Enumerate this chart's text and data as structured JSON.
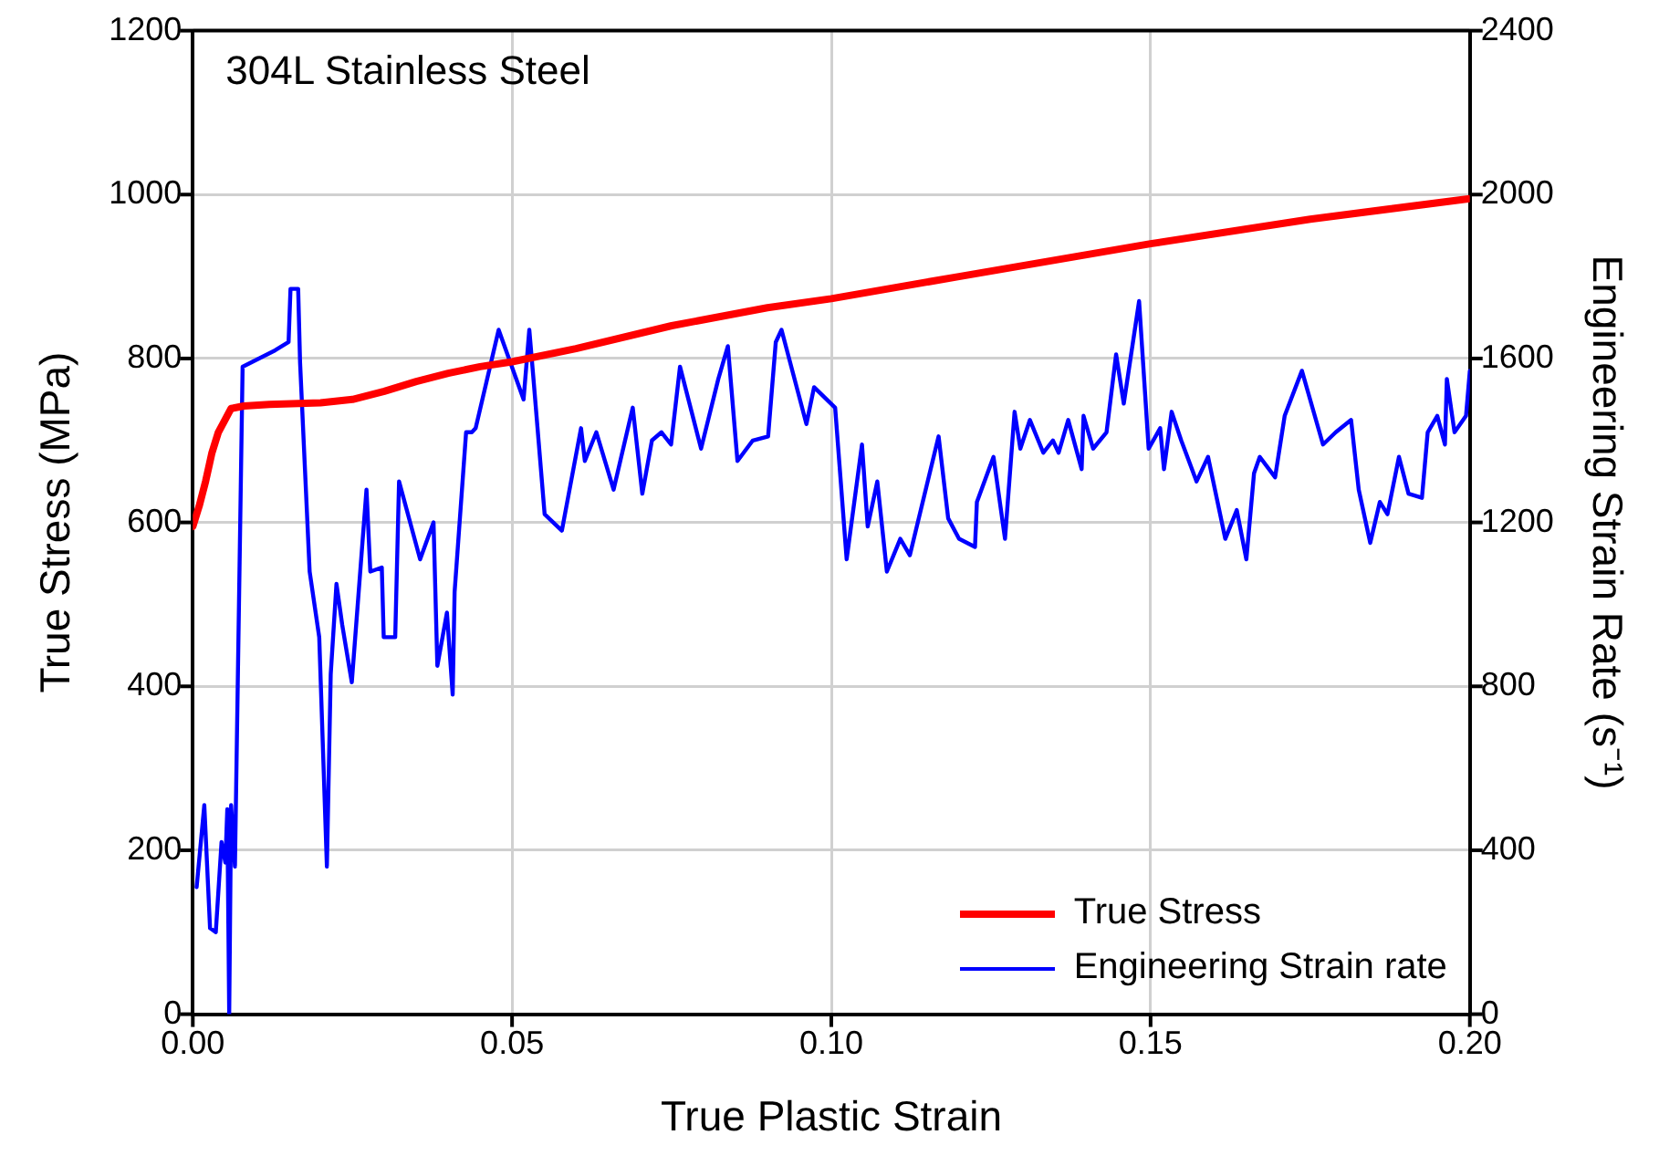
{
  "chart_data": {
    "type": "line",
    "xlabel": "True Plastic Strain",
    "ylabel": "True Stress (MPa)",
    "y2label": "Engineering Strain Rate (s⁻¹)",
    "annotations": [
      "304L Stainless Steel"
    ],
    "xlim": [
      0,
      0.2
    ],
    "xticks": [
      {
        "value": 0,
        "label": "0.00"
      },
      {
        "value": 0.05,
        "label": "0.05"
      },
      {
        "value": 0.1,
        "label": "0.10"
      },
      {
        "value": 0.15,
        "label": "0.15"
      },
      {
        "value": 0.2,
        "label": "0.20"
      }
    ],
    "ylim": [
      0,
      1200
    ],
    "yticks": [
      0,
      200,
      400,
      600,
      800,
      1000,
      1200
    ],
    "y2lim": [
      0,
      2400
    ],
    "y2ticks": [
      0,
      400,
      800,
      1200,
      1600,
      2000,
      2400
    ],
    "grid": true,
    "legend": "bottom right",
    "marker": "none",
    "line_style": "solid",
    "series": [
      {
        "name": "True Stress",
        "color": "#ff0000",
        "x": [
          0,
          0.001,
          0.002,
          0.003,
          0.004,
          0.006,
          0.008,
          0.012,
          0.02,
          0.025,
          0.03,
          0.035,
          0.04,
          0.045,
          0.05,
          0.06,
          0.075,
          0.09,
          0.1,
          0.12,
          0.15,
          0.175,
          0.2
        ],
        "values": [
          595,
          620,
          650,
          685,
          710,
          739,
          742,
          744,
          746,
          750,
          760,
          772,
          782,
          790,
          796,
          812,
          840,
          862,
          873,
          900,
          940,
          970,
          995
        ]
      },
      {
        "name": "Engineering Strain rate",
        "color": "#0000ff",
        "axis": "y2",
        "x": [
          0.0006,
          0.0018,
          0.0027,
          0.0036,
          0.0045,
          0.0051,
          0.0054,
          0.0057,
          0.006,
          0.0066,
          0.0078,
          0.0129,
          0.015,
          0.0153,
          0.0165,
          0.0168,
          0.0183,
          0.0198,
          0.021,
          0.0216,
          0.0225,
          0.0234,
          0.0249,
          0.0272,
          0.0278,
          0.0296,
          0.0299,
          0.0317,
          0.0323,
          0.0356,
          0.0377,
          0.0383,
          0.0398,
          0.0407,
          0.041,
          0.0428,
          0.0437,
          0.0443,
          0.0479,
          0.0518,
          0.0527,
          0.0533,
          0.0551,
          0.0578,
          0.0608,
          0.0614,
          0.0632,
          0.0659,
          0.0689,
          0.0704,
          0.0719,
          0.0734,
          0.0749,
          0.0763,
          0.0796,
          0.0823,
          0.0838,
          0.0853,
          0.0877,
          0.0901,
          0.0913,
          0.0922,
          0.0961,
          0.0973,
          0.1006,
          0.1024,
          0.1048,
          0.1057,
          0.1072,
          0.1087,
          0.1108,
          0.1123,
          0.1168,
          0.1183,
          0.12,
          0.1225,
          0.1228,
          0.1254,
          0.1272,
          0.1287,
          0.1296,
          0.1311,
          0.1332,
          0.1347,
          0.1356,
          0.1371,
          0.1392,
          0.1395,
          0.141,
          0.1431,
          0.1446,
          0.1458,
          0.1482,
          0.1497,
          0.1515,
          0.1521,
          0.1533,
          0.1548,
          0.1572,
          0.159,
          0.1617,
          0.1635,
          0.165,
          0.1662,
          0.1671,
          0.1695,
          0.171,
          0.1737,
          0.177,
          0.179,
          0.1814,
          0.1826,
          0.1844,
          0.1859,
          0.1871,
          0.1889,
          0.1904,
          0.1925,
          0.1934,
          0.1949,
          0.1961,
          0.1964,
          0.1976,
          0.1994,
          0.2
        ],
        "values": [
          310,
          510,
          210,
          200,
          420,
          370,
          500,
          0,
          510,
          360,
          1580,
          1620,
          1640,
          1770,
          1770,
          1590,
          1080,
          920,
          360,
          830,
          1050,
          950,
          810,
          1280,
          1080,
          1090,
          920,
          920,
          1300,
          1110,
          1200,
          850,
          980,
          780,
          1030,
          1420,
          1420,
          1430,
          1670,
          1500,
          1670,
          1560,
          1220,
          1180,
          1430,
          1350,
          1420,
          1280,
          1480,
          1270,
          1400,
          1420,
          1390,
          1580,
          1380,
          1550,
          1630,
          1350,
          1400,
          1410,
          1640,
          1670,
          1440,
          1530,
          1480,
          1110,
          1390,
          1190,
          1300,
          1080,
          1160,
          1120,
          1410,
          1210,
          1160,
          1140,
          1250,
          1360,
          1160,
          1470,
          1380,
          1450,
          1370,
          1400,
          1370,
          1450,
          1330,
          1460,
          1380,
          1420,
          1610,
          1490,
          1740,
          1380,
          1430,
          1330,
          1470,
          1400,
          1300,
          1360,
          1160,
          1230,
          1110,
          1320,
          1360,
          1310,
          1460,
          1570,
          1390,
          1420,
          1450,
          1280,
          1150,
          1250,
          1220,
          1360,
          1270,
          1260,
          1420,
          1460,
          1390,
          1550,
          1420,
          1460,
          1570
        ]
      }
    ]
  }
}
